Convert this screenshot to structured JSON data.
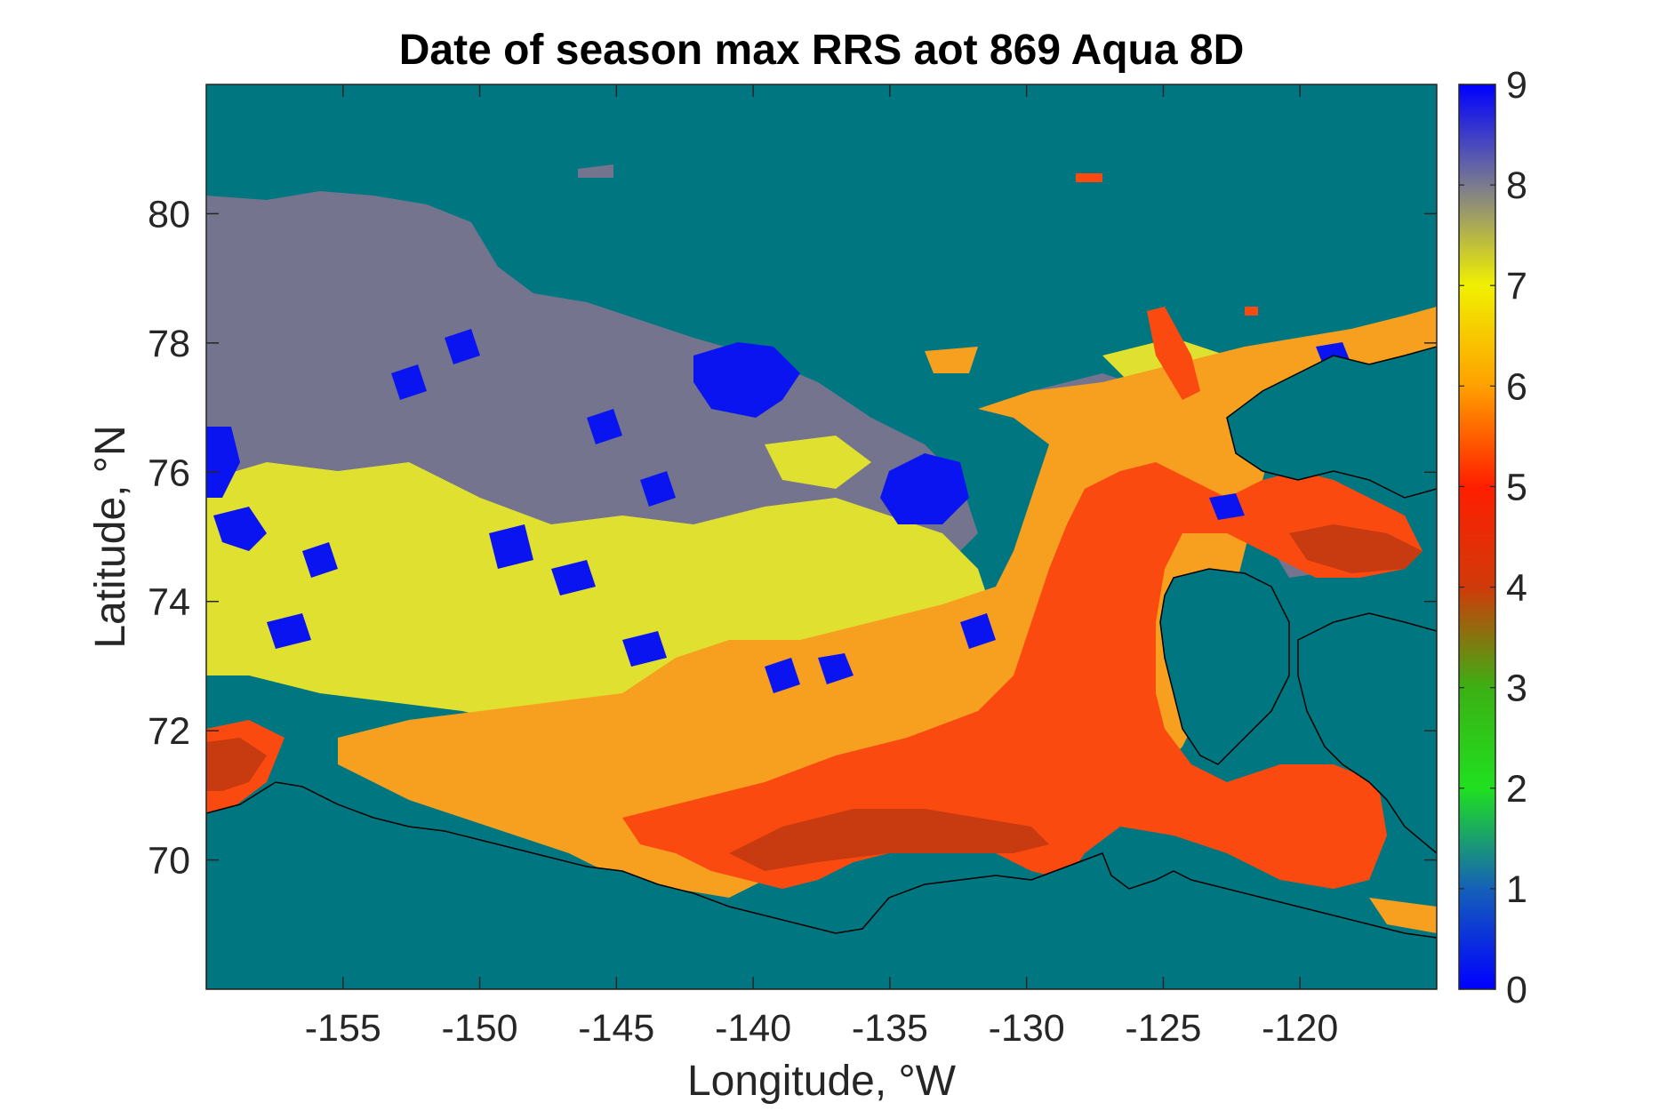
{
  "figure": {
    "title": "Date of season max RRS aot 869 Aqua 8D",
    "xlabel": "Longitude, °W",
    "ylabel": "Latitude, °N"
  },
  "chart_data": {
    "type": "heatmap",
    "title": "Date of season max RRS aot 869 Aqua 8D",
    "xlabel": "Longitude, °W",
    "ylabel": "Latitude, °N",
    "xlim": [
      -160,
      -115
    ],
    "ylim": [
      68,
      82
    ],
    "xticks": [
      -155,
      -150,
      -145,
      -140,
      -135,
      -130,
      -125,
      -120
    ],
    "xtick_labels": [
      "-155",
      "-150",
      "-145",
      "-140",
      "-135",
      "-130",
      "-125",
      "-120"
    ],
    "yticks": [
      70,
      72,
      74,
      76,
      78,
      80
    ],
    "ytick_labels": [
      "70",
      "72",
      "74",
      "76",
      "78",
      "80"
    ],
    "grid": false,
    "colorbar": {
      "range": [
        0,
        9
      ],
      "ticks": [
        0,
        1,
        2,
        3,
        4,
        5,
        6,
        7,
        8,
        9
      ],
      "tick_labels": [
        "0",
        "1",
        "2",
        "3",
        "4",
        "5",
        "6",
        "7",
        "8",
        "9"
      ],
      "stops": [
        {
          "value": 0,
          "color": "#0000ff"
        },
        {
          "value": 1,
          "color": "#1560b8"
        },
        {
          "value": 2,
          "color": "#20e020"
        },
        {
          "value": 3,
          "color": "#3cb014"
        },
        {
          "value": 4,
          "color": "#d03a0a"
        },
        {
          "value": 5,
          "color": "#ff1e00"
        },
        {
          "value": 6,
          "color": "#ffa000"
        },
        {
          "value": 7,
          "color": "#f0f000"
        },
        {
          "value": 8,
          "color": "#7a7a90"
        },
        {
          "value": 9,
          "color": "#0000ff"
        }
      ]
    },
    "background_color": "#007780",
    "coastline_color": "#000000"
  }
}
